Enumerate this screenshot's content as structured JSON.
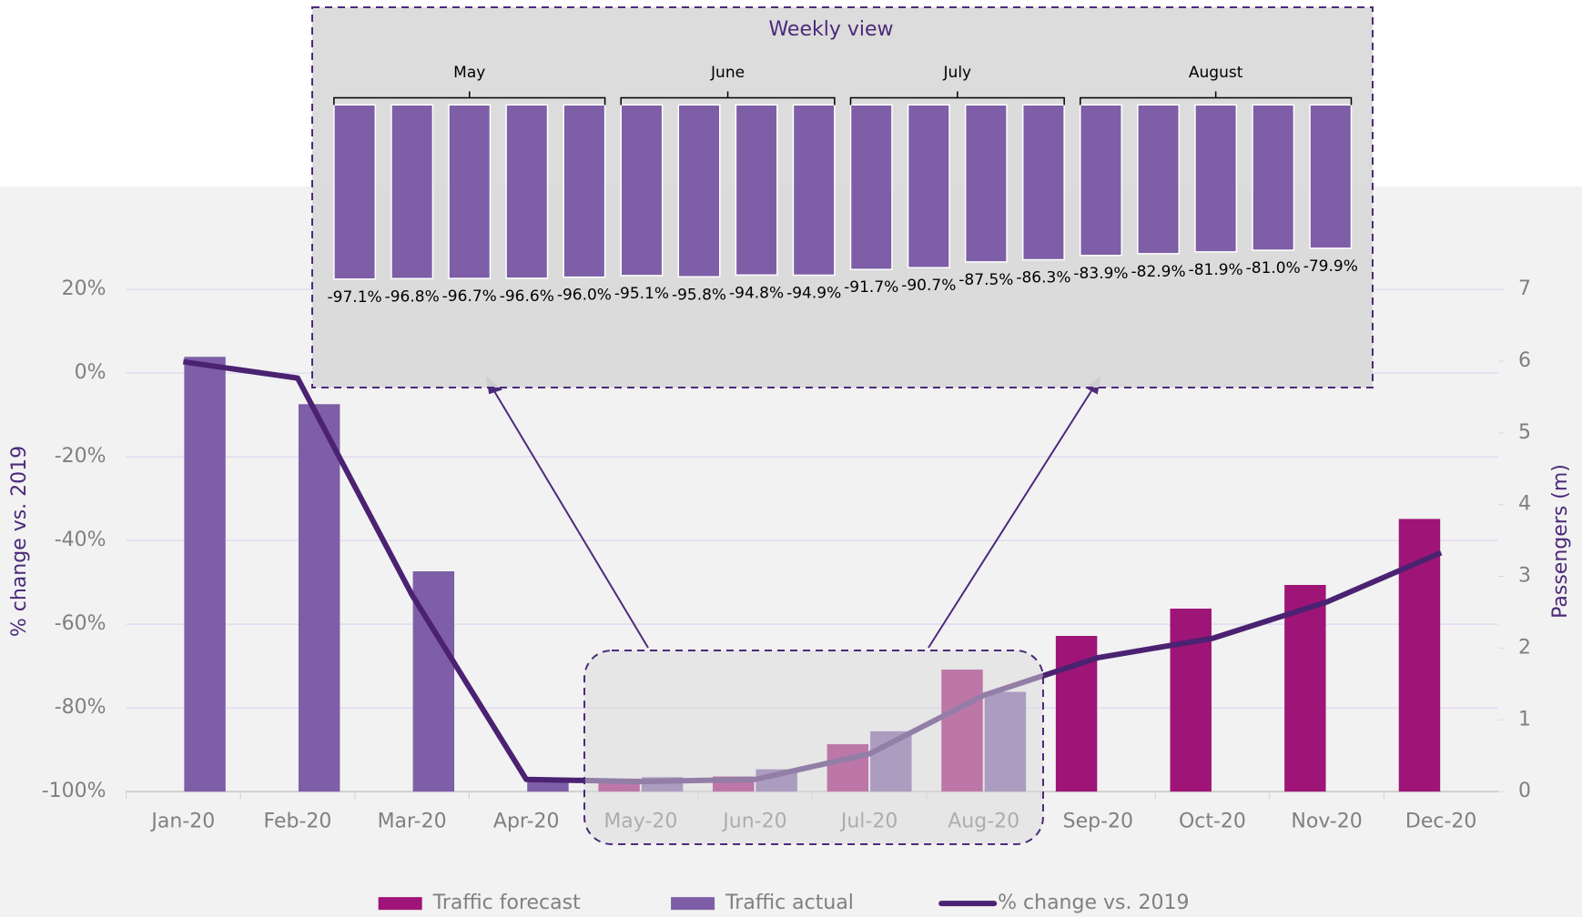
{
  "chart_data": [
    {
      "type": "bar",
      "categories": [
        "Jan-20",
        "Feb-20",
        "Mar-20",
        "Apr-20",
        "May-20",
        "Jun-20",
        "Jul-20",
        "Aug-20",
        "Sep-20",
        "Oct-20",
        "Nov-20",
        "Dec-20"
      ],
      "series": [
        {
          "name": "Traffic forecast",
          "type": "bar",
          "axis": "y2",
          "color": "#9e1577",
          "values": [
            null,
            null,
            null,
            null,
            0.18,
            0.21,
            0.66,
            1.7,
            2.17,
            2.55,
            2.88,
            3.8
          ]
        },
        {
          "name": "Traffic actual",
          "type": "bar",
          "axis": "y2",
          "color": "#7e5ea6",
          "values": [
            6.06,
            5.4,
            3.07,
            0.18,
            0.2,
            0.31,
            0.84,
            1.39,
            null,
            null,
            null,
            null
          ]
        },
        {
          "name": "% change vs. 2019",
          "type": "line",
          "axis": "y",
          "color": "#4b2272",
          "values": [
            2.7,
            -1.2,
            -53,
            -97.1,
            -97.6,
            -97.1,
            -91,
            -77,
            -68,
            -63.4,
            -54.7,
            -42.9
          ]
        }
      ],
      "ylabel": "% change vs. 2019",
      "y2label": "Passengers (m)",
      "ylim": [
        -100,
        20
      ],
      "yticks": [
        {
          "value": 20,
          "label": "20%"
        },
        {
          "value": 0,
          "label": "0%"
        },
        {
          "value": -20,
          "label": "-20%"
        },
        {
          "value": -40,
          "label": "-40%"
        },
        {
          "value": -60,
          "label": "-60%"
        },
        {
          "value": -80,
          "label": "-80%"
        },
        {
          "value": -100,
          "label": "-100%"
        }
      ],
      "y2lim": [
        0,
        7
      ],
      "y2ticks": [
        0,
        1,
        2,
        3,
        4,
        5,
        6,
        7
      ],
      "grid": true,
      "legend": "bottom"
    },
    {
      "type": "bar",
      "title": "Weekly view",
      "week_groups": [
        {
          "label": "May",
          "weeks": 5
        },
        {
          "label": "June",
          "weeks": 4
        },
        {
          "label": "July",
          "weeks": 4
        },
        {
          "label": "August",
          "weeks": 5
        }
      ],
      "values": [
        -97.1,
        -96.8,
        -96.7,
        -96.6,
        -96.0,
        -95.1,
        -95.8,
        -94.8,
        -94.9,
        -91.7,
        -90.7,
        -87.5,
        -86.3,
        -83.9,
        -82.9,
        -81.9,
        -81.0,
        -79.9
      ],
      "value_labels": [
        "-97.1%",
        "-96.8%",
        "-96.7%",
        "-96.6%",
        "-96.0%",
        "-95.1%",
        "-95.8%",
        "-94.8%",
        "-94.9%",
        "-91.7%",
        "-90.7%",
        "-87.5%",
        "-86.3%",
        "-83.9%",
        "-82.9%",
        "-81.9%",
        "-81.0%",
        "-79.9%"
      ],
      "color": "#7e5ea6",
      "ylim": [
        -100,
        0
      ]
    }
  ]
}
